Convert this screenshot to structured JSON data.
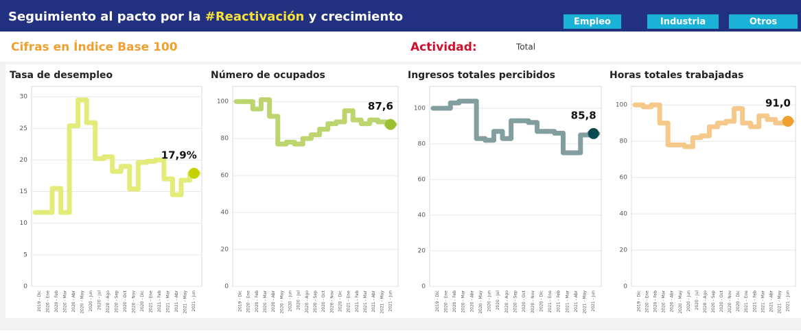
{
  "header": {
    "title_start": "Seguimiento al pacto por la ",
    "title_hashtag": "#Reactivación",
    "title_end": " y crecimiento",
    "buttons": [
      "Empleo",
      "Industria",
      "Otros"
    ],
    "subtitle": "Cifras en Índice Base 100",
    "activity_label": "Actividad:",
    "activity_value": "Total"
  },
  "chart_data": [
    {
      "type": "step",
      "title": "Tasa de desempleo",
      "color": "#e3ec78",
      "point_color": "#c4d200",
      "categories": [
        "2019 - Dic",
        "2020 - Ene",
        "2020 - Feb",
        "2020 - Mar",
        "2020 - Abr",
        "2020 - May",
        "2020 - Jun",
        "2020 - Jul",
        "2020 - Ago",
        "2020 - Sep",
        "2020 - Oct",
        "2020 - Nov",
        "2020 - Dic",
        "2021 - Ene",
        "2021 - Feb",
        "2021 - Mar",
        "2021 - Abr",
        "2021 - May",
        "2021 - Jun"
      ],
      "values": [
        11.7,
        11.7,
        15.5,
        11.7,
        25.4,
        29.5,
        25.9,
        20.2,
        20.5,
        18.2,
        19.0,
        15.4,
        19.6,
        19.8,
        20.0,
        17.0,
        14.5,
        16.8,
        17.9
      ],
      "value_labels": [
        null,
        null,
        null,
        null,
        null,
        null,
        null,
        null,
        null,
        null,
        null,
        null,
        null,
        null,
        null,
        null,
        null,
        null,
        "17,9%"
      ],
      "ylim": [
        0,
        31
      ],
      "yticks": [
        0,
        5,
        10,
        15,
        20,
        25,
        30
      ],
      "grid": true
    },
    {
      "type": "step",
      "title": "Número de ocupados",
      "color": "#bcd56e",
      "point_color": "#9bbf2e",
      "categories": [
        "2019 - Dic",
        "2020 - Ene",
        "2020 - Feb",
        "2020 - Mar",
        "2020 - Abr",
        "2020 - May",
        "2020 - Jun",
        "2020 - Jul",
        "2020 - Ago",
        "2020 - Sep",
        "2020 - Oct",
        "2020 - Nov",
        "2020 - Dic",
        "2021 - Ene",
        "2021 - Feb",
        "2021 - Mar",
        "2021 - Abr",
        "2021 - May",
        "2021 - Jun"
      ],
      "values": [
        100,
        100,
        96,
        101,
        92,
        77,
        78,
        77,
        80,
        82,
        85,
        88,
        89,
        95,
        90,
        88,
        90,
        89,
        87.6
      ],
      "value_labels": [
        null,
        null,
        null,
        null,
        null,
        null,
        null,
        null,
        null,
        null,
        null,
        null,
        null,
        null,
        null,
        null,
        null,
        null,
        "87,6"
      ],
      "ylim": [
        0,
        106
      ],
      "yticks": [
        0,
        20,
        40,
        60,
        80,
        100
      ],
      "grid": true
    },
    {
      "type": "step",
      "title": "Ingresos totales percibidos",
      "color": "#829e9f",
      "point_color": "#0b4a50",
      "categories": [
        "2019 - Dic",
        "2020 - Ene",
        "2020 - Feb",
        "2020 - Mar",
        "2020 - Abr",
        "2020 - May",
        "2020 - Jun",
        "2020 - Jul",
        "2020 - Ago",
        "2020 - Sep",
        "2020 - Oct",
        "2020 - Nov",
        "2020 - Dic",
        "2021 - Ene",
        "2021 - Feb",
        "2021 - Mar",
        "2021 - Abr",
        "2021 - May",
        "2021 - Jun"
      ],
      "values": [
        100,
        100,
        103,
        104,
        104,
        83,
        82,
        87,
        83,
        93,
        93,
        92,
        87,
        87,
        86,
        75,
        75,
        85,
        85.8
      ],
      "value_labels": [
        null,
        null,
        null,
        null,
        null,
        null,
        null,
        null,
        null,
        null,
        null,
        null,
        null,
        null,
        null,
        null,
        null,
        null,
        "85,8"
      ],
      "ylim": [
        0,
        110
      ],
      "yticks": [
        0,
        20,
        40,
        60,
        80,
        100
      ],
      "grid": true
    },
    {
      "type": "step",
      "title": "Horas totales trabajadas",
      "color": "#f5c98b",
      "point_color": "#f0a030",
      "categories": [
        "2019 - Dic",
        "2020 - Ene",
        "2020 - Feb",
        "2020 - Mar",
        "2020 - Abr",
        "2020 - May",
        "2020 - Jun",
        "2020 - Jul",
        "2020 - Ago",
        "2020 - Sep",
        "2020 - Oct",
        "2020 - Nov",
        "2020 - Dic",
        "2021 - Ene",
        "2021 - Feb",
        "2021 - Mar",
        "2021 - Abr",
        "2021 - May",
        "2021 - Jun"
      ],
      "values": [
        100,
        99,
        100,
        90,
        78,
        78,
        77,
        82,
        83,
        88,
        90,
        91,
        98,
        90,
        88,
        94,
        92,
        90,
        91.0
      ],
      "value_labels": [
        null,
        null,
        null,
        null,
        null,
        null,
        null,
        null,
        null,
        null,
        null,
        null,
        null,
        null,
        null,
        null,
        null,
        null,
        "91,0"
      ],
      "ylim": [
        0,
        108
      ],
      "yticks": [
        0,
        20,
        40,
        60,
        80,
        100
      ],
      "grid": true
    }
  ]
}
